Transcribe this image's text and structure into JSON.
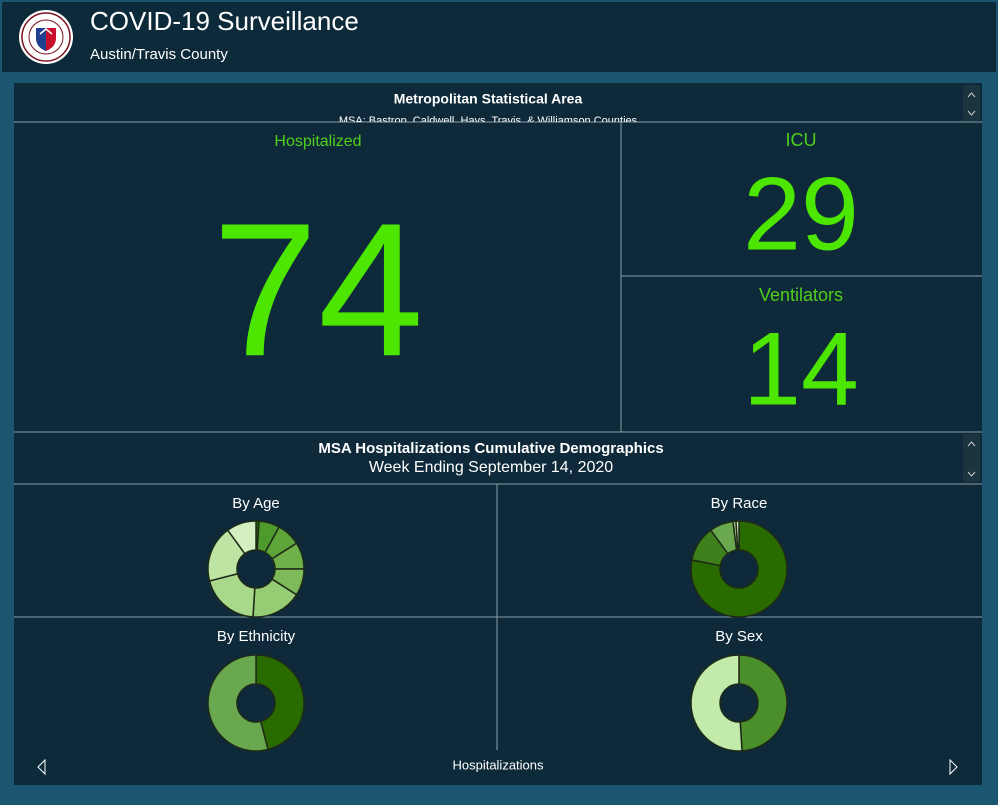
{
  "header": {
    "title": "COVID-19 Surveillance",
    "subtitle": "Austin/Travis County"
  },
  "panel": {
    "title": "Metropolitan Statistical Area",
    "subtitle": "MSA: Bastrop, Caldwell, Hays, Travis, & Williamson Counties"
  },
  "metrics": [
    {
      "label": "Hospitalized",
      "value": 74
    },
    {
      "label": "ICU",
      "value": 29
    },
    {
      "label": "Ventilators",
      "value": 14
    }
  ],
  "demographics": {
    "title": "MSA Hospitalizations Cumulative Demographics",
    "subtitle": "Week Ending September 14, 2020"
  },
  "chart_data": [
    {
      "type": "pie",
      "title": "By Age",
      "values": [
        1,
        7,
        8,
        9,
        9,
        17,
        20,
        19,
        10
      ],
      "colors": [
        "#2e6b00",
        "#4f9a2c",
        "#5fa63a",
        "#6fb04a",
        "#7fba5a",
        "#96cc74",
        "#a8d88a",
        "#bde4a2",
        "#d4f0c0"
      ]
    },
    {
      "type": "pie",
      "title": "By Race",
      "values": [
        78,
        12,
        8,
        1,
        1
      ],
      "colors": [
        "#2a6b00",
        "#3f7f1c",
        "#6aa84f",
        "#a8d08d",
        "#d4ecc0"
      ]
    },
    {
      "type": "pie",
      "title": "By Ethnicity",
      "values": [
        46,
        54
      ],
      "colors": [
        "#2a6b00",
        "#6aa84f"
      ]
    },
    {
      "type": "pie",
      "title": "By Sex",
      "values": [
        49,
        51
      ],
      "colors": [
        "#4a8f2a",
        "#c2eaaa"
      ]
    }
  ],
  "footer": {
    "label": "Hospitalizations"
  }
}
